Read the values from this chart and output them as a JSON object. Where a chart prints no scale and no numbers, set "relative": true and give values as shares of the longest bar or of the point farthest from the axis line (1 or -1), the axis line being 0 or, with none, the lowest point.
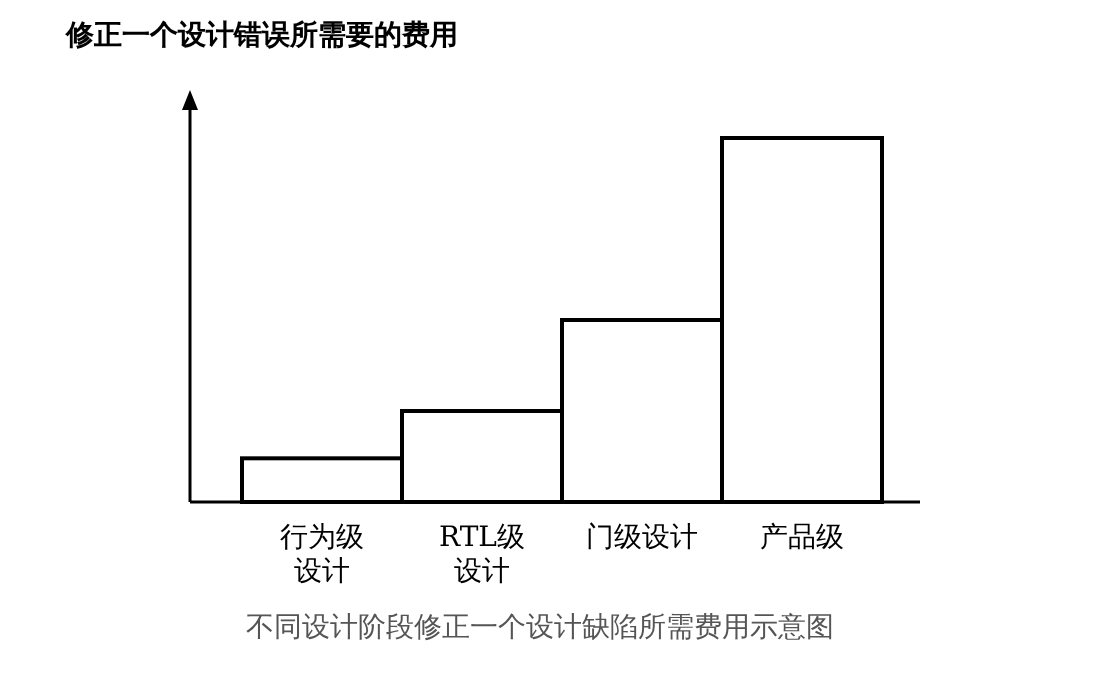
{
  "chart_data": {
    "type": "bar",
    "relative": true,
    "ylabel": "修正一个设计错误所需要的费用",
    "categories": [
      "行为级设计",
      "RTL级设计",
      "门级设计",
      "产品级"
    ],
    "values": [
      0.12,
      0.25,
      0.5,
      1
    ],
    "color": "#ffffff",
    "annotations": [
      "不同设计阶段修正一个设计缺陷所需费用示意图"
    ],
    "grid": false,
    "legend": false
  }
}
